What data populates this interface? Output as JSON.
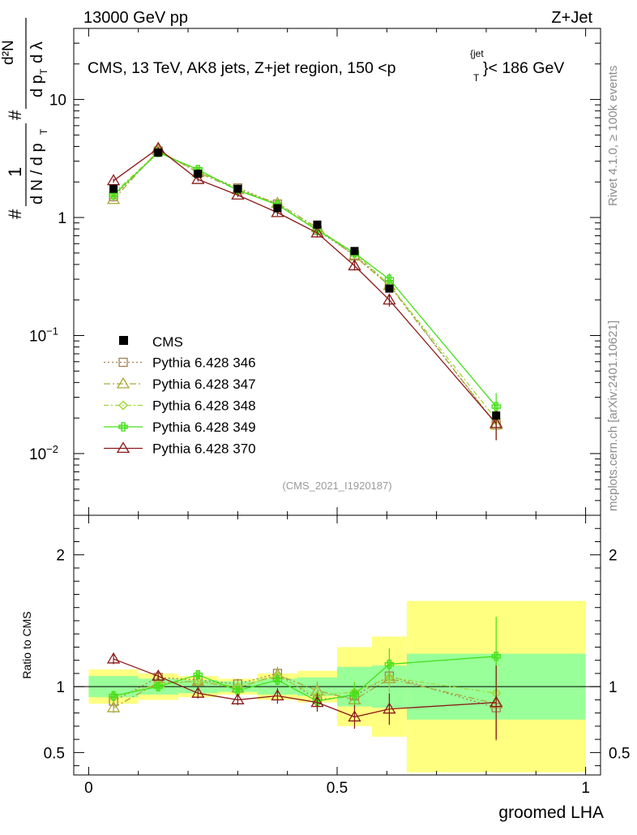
{
  "header": {
    "beam": "13000 GeV pp",
    "process": "Z+Jet",
    "title_main": "CMS, 13 TeV, AK8 jets, Z+jet region, 150 <p",
    "title_sup": "{jet",
    "title_sub": "T",
    "title_end": "}< 186 GeV",
    "watermark": "(CMS_2021_I1920187)",
    "side_top": "Rivet 4.1.0, ≥ 100k events",
    "side_bottom": "mcplots.cern.ch [arXiv:2401.10621]"
  },
  "chart_data": {
    "type": "line",
    "xlabel": "groomed LHA",
    "ylabel_top": "# 1/(dN/dp_T)  # d²N/(dp_T dλ)",
    "ylabel_ratio": "Ratio to CMS",
    "x": [
      0.05,
      0.14,
      0.22,
      0.3,
      0.38,
      0.46,
      0.535,
      0.605,
      0.82
    ],
    "x_edges": [
      0.0,
      0.1,
      0.18,
      0.26,
      0.34,
      0.42,
      0.5,
      0.57,
      0.64,
      1.0
    ],
    "xlim": [
      -0.03,
      1.03
    ],
    "ylim_log": [
      0.003,
      40
    ],
    "ratio_ylim": [
      0.33,
      2.3
    ],
    "x_ticks": [
      "0",
      "0.5",
      "1"
    ],
    "y_ticks": [
      {
        "v": 0.01,
        "mant": "10",
        "exp": "−2"
      },
      {
        "v": 0.1,
        "mant": "10",
        "exp": "−1"
      },
      {
        "v": 1,
        "mant": "1",
        "exp": ""
      },
      {
        "v": 10,
        "mant": "10",
        "exp": ""
      }
    ],
    "ratio_ticks": [
      "0.5",
      "1",
      "2"
    ],
    "ratio_tick_values": [
      0.5,
      1,
      2
    ],
    "data": {
      "name": "CMS",
      "values": [
        1.75,
        3.55,
        2.35,
        1.75,
        1.2,
        0.87,
        0.52,
        0.25,
        0.021
      ],
      "band_stat": [
        0.08,
        0.06,
        0.05,
        0.04,
        0.06,
        0.07,
        0.15,
        0.16,
        0.25
      ],
      "band_total": [
        0.13,
        0.1,
        0.08,
        0.06,
        0.1,
        0.12,
        0.3,
        0.38,
        0.65
      ]
    },
    "series": [
      {
        "name": "Pythia 6.428 346",
        "color": "#a08050",
        "marker": "square",
        "dash": "2,3",
        "values": [
          1.5,
          3.65,
          2.45,
          1.78,
          1.3,
          0.78,
          0.48,
          0.27,
          0.0175
        ],
        "ratio": [
          0.89,
          1.07,
          1.05,
          1.02,
          1.1,
          0.9,
          0.93,
          1.08,
          0.84
        ],
        "err": [
          0.04,
          0.03,
          0.03,
          0.04,
          0.05,
          0.07,
          0.08,
          0.1,
          0.25
        ]
      },
      {
        "name": "Pythia 6.428 347",
        "color": "#a8a83a",
        "marker": "triangle",
        "dash": "8,3,2,3",
        "values": [
          1.42,
          3.7,
          2.4,
          1.72,
          1.32,
          0.82,
          0.47,
          0.265,
          0.0175
        ],
        "ratio": [
          0.84,
          1.03,
          1.04,
          0.99,
          1.09,
          0.97,
          0.9,
          1.06,
          0.87
        ],
        "err": [
          0.04,
          0.03,
          0.03,
          0.04,
          0.05,
          0.07,
          0.08,
          0.1,
          0.25
        ]
      },
      {
        "name": "Pythia 6.428 348",
        "color": "#a0d838",
        "marker": "diamond",
        "dash": "6,3,2,3",
        "values": [
          1.6,
          3.6,
          2.45,
          1.75,
          1.28,
          0.8,
          0.5,
          0.27,
          0.0195
        ],
        "ratio": [
          0.92,
          1.02,
          1.04,
          1.0,
          1.08,
          0.93,
          0.96,
          1.07,
          0.95
        ],
        "err": [
          0.04,
          0.03,
          0.03,
          0.04,
          0.05,
          0.07,
          0.08,
          0.1,
          0.25
        ]
      },
      {
        "name": "Pythia 6.428 349",
        "color": "#44e018",
        "marker": "cross",
        "dash": "",
        "values": [
          1.55,
          3.55,
          2.55,
          1.7,
          1.28,
          0.78,
          0.5,
          0.3,
          0.025
        ],
        "ratio": [
          0.93,
          1.0,
          1.09,
          0.97,
          1.05,
          0.89,
          0.94,
          1.17,
          1.23
        ],
        "err": [
          0.04,
          0.03,
          0.03,
          0.04,
          0.05,
          0.07,
          0.09,
          0.12,
          0.3
        ]
      },
      {
        "name": "Pythia 6.428 370",
        "color": "#8a1818",
        "marker": "triangle",
        "dash": "",
        "values": [
          2.05,
          3.85,
          2.1,
          1.55,
          1.1,
          0.74,
          0.39,
          0.2,
          0.018
        ],
        "ratio": [
          1.21,
          1.08,
          0.95,
          0.9,
          0.93,
          0.88,
          0.77,
          0.83,
          0.88
        ],
        "err": [
          0.04,
          0.03,
          0.04,
          0.04,
          0.06,
          0.07,
          0.09,
          0.12,
          0.28
        ]
      }
    ]
  }
}
